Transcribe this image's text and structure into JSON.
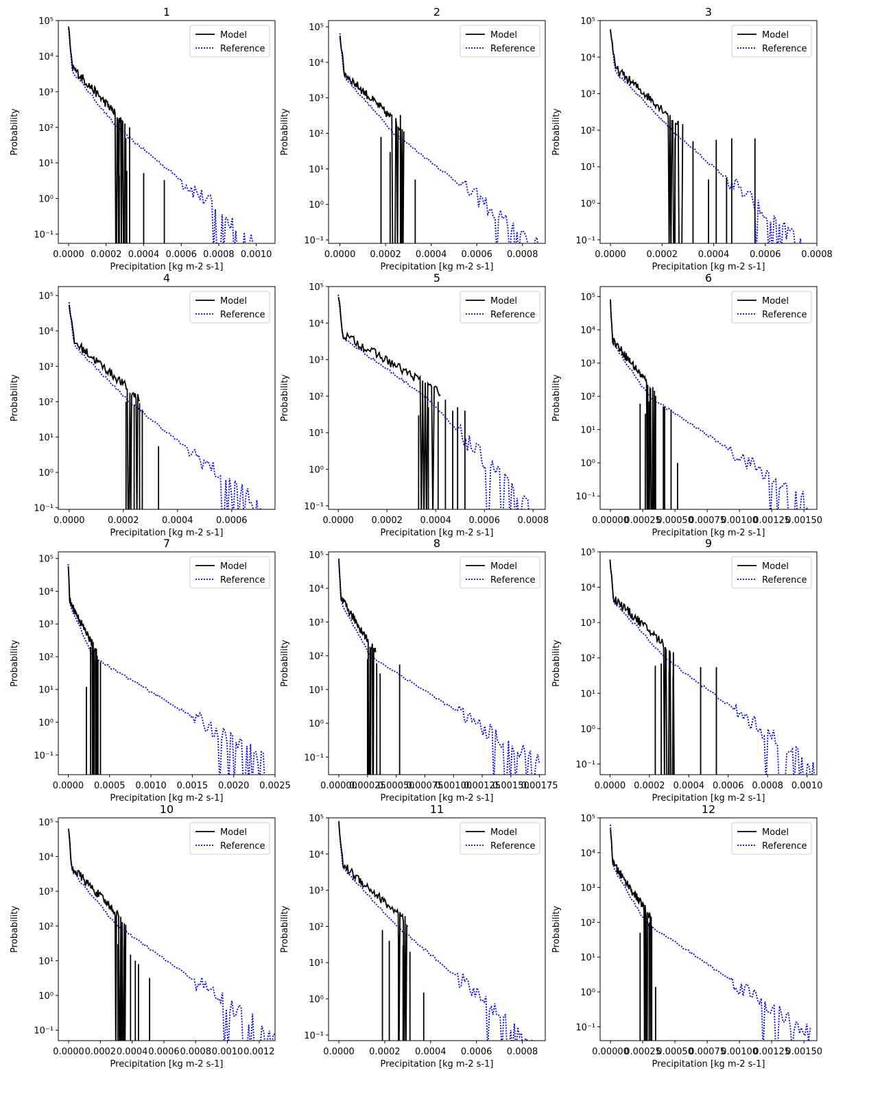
{
  "figure": {
    "legend_placement": "top-right",
    "styles": {
      "model_color": "#000000",
      "reference_color": "#0000ff"
    }
  },
  "chart_data": [
    {
      "type": "line",
      "title": "1",
      "xlabel": "Precipitation [kg m-2 s-1]",
      "ylabel": "Probability",
      "yscale": "log",
      "xlim": [
        -5.5e-05,
        0.0011
      ],
      "ylim": [
        0.055,
        100000
      ],
      "xticks": [
        0,
        0.0002,
        0.0004,
        0.0006,
        0.0008,
        0.001
      ],
      "xtick_labels": [
        "0.0000",
        "0.0002",
        "0.0004",
        "0.0006",
        "0.0008",
        "0.0010"
      ],
      "yticks": [
        0.1,
        1,
        10,
        100,
        1000,
        10000,
        100000
      ],
      "ytick_labels": [
        "10⁻¹",
        "10⁰",
        "10¹",
        "10²",
        "10³",
        "10⁴",
        "10⁵"
      ],
      "model_tail": 0.0003,
      "ref_end": 0.001,
      "spikes": [
        [
          0.00027,
          4.5
        ],
        [
          0.000305,
          50
        ],
        [
          0.00031,
          6
        ],
        [
          0.000325,
          100
        ],
        [
          0.0004,
          5.2
        ],
        [
          0.00051,
          3.3
        ]
      ],
      "legend": [
        "Model",
        "Reference"
      ]
    },
    {
      "type": "line",
      "title": "2",
      "xlabel": "Precipitation [kg m-2 s-1]",
      "ylabel": "Probability",
      "yscale": "log",
      "xlim": [
        -5e-05,
        0.0009
      ],
      "ylim": [
        0.08,
        150000
      ],
      "xticks": [
        0,
        0.0002,
        0.0004,
        0.0006,
        0.0008
      ],
      "xtick_labels": [
        "0.0000",
        "0.0002",
        "0.0004",
        "0.0006",
        "0.0008"
      ],
      "yticks": [
        0.1,
        1,
        10,
        100,
        1000,
        10000,
        100000
      ],
      "ytick_labels": [
        "10⁻¹",
        "10⁰",
        "10¹",
        "10²",
        "10³",
        "10⁴",
        "10⁵"
      ],
      "model_tail": 0.00028,
      "ref_end": 0.00088,
      "spikes": [
        [
          0.00018,
          80
        ],
        [
          0.00022,
          30
        ],
        [
          0.000265,
          330
        ],
        [
          0.000275,
          10
        ],
        [
          0.00033,
          5
        ]
      ],
      "legend": [
        "Model",
        "Reference"
      ]
    },
    {
      "type": "line",
      "title": "3",
      "xlabel": "Precipitation [kg m-2 s-1]",
      "ylabel": "Probability",
      "yscale": "log",
      "xlim": [
        -4e-05,
        0.0008
      ],
      "ylim": [
        0.08,
        100000
      ],
      "xticks": [
        0,
        0.0002,
        0.0004,
        0.0006,
        0.0008
      ],
      "xtick_labels": [
        "0.0000",
        "0.0002",
        "0.0004",
        "0.0006",
        "0.0008"
      ],
      "yticks": [
        0.1,
        1,
        10,
        100,
        1000,
        10000,
        100000
      ],
      "ytick_labels": [
        "10⁻¹",
        "10⁰",
        "10¹",
        "10²",
        "10³",
        "10⁴",
        "10⁵"
      ],
      "model_tail": 0.00028,
      "ref_end": 0.00075,
      "spikes": [
        [
          0.00025,
          60
        ],
        [
          0.00032,
          50
        ],
        [
          0.00038,
          4.5
        ],
        [
          0.00041,
          55
        ],
        [
          0.00045,
          5
        ],
        [
          0.00047,
          60
        ],
        [
          0.00056,
          60
        ]
      ],
      "legend": [
        "Model",
        "Reference"
      ]
    },
    {
      "type": "line",
      "title": "4",
      "xlabel": "Precipitation [kg m-2 s-1]",
      "ylabel": "Probability",
      "yscale": "log",
      "xlim": [
        -4e-05,
        0.00076
      ],
      "ylim": [
        0.09,
        180000
      ],
      "xticks": [
        0,
        0.0002,
        0.0004,
        0.0006
      ],
      "xtick_labels": [
        "0.0000",
        "0.0002",
        "0.0004",
        "0.0006"
      ],
      "yticks": [
        0.1,
        1,
        10,
        100,
        1000,
        10000,
        100000
      ],
      "ytick_labels": [
        "10⁻¹",
        "10⁰",
        "10¹",
        "10²",
        "10³",
        "10⁴",
        "10⁵"
      ],
      "model_tail": 0.00026,
      "ref_end": 0.00074,
      "spikes": [
        [
          0.00021,
          100
        ],
        [
          0.00024,
          80
        ],
        [
          0.00026,
          90
        ],
        [
          0.00027,
          60
        ],
        [
          0.00033,
          5.5
        ]
      ],
      "legend": [
        "Model",
        "Reference"
      ]
    },
    {
      "type": "line",
      "title": "5",
      "xlabel": "Precipitation [kg m-2 s-1]",
      "ylabel": "Probability",
      "yscale": "log",
      "xlim": [
        -4e-05,
        0.00085
      ],
      "ylim": [
        0.08,
        100000
      ],
      "xticks": [
        0,
        0.0002,
        0.0004,
        0.0006,
        0.0008
      ],
      "xtick_labels": [
        "0.0000",
        "0.0002",
        "0.0004",
        "0.0006",
        "0.0008"
      ],
      "yticks": [
        0.1,
        1,
        10,
        100,
        1000,
        10000,
        100000
      ],
      "ytick_labels": [
        "10⁻¹",
        "10⁰",
        "10¹",
        "10²",
        "10³",
        "10⁴",
        "10⁵"
      ],
      "model_tail": 0.00042,
      "ref_end": 0.0008,
      "spikes": [
        [
          0.00033,
          30
        ],
        [
          0.00037,
          50
        ],
        [
          0.00041,
          70
        ],
        [
          0.00044,
          80
        ],
        [
          0.00047,
          40
        ],
        [
          0.00049,
          50
        ],
        [
          0.00052,
          40
        ]
      ],
      "legend": [
        "Model",
        "Reference"
      ]
    },
    {
      "type": "line",
      "title": "6",
      "xlabel": "Precipitation [kg m-2 s-1]",
      "ylabel": "Probability",
      "yscale": "log",
      "xlim": [
        -8e-05,
        0.0016
      ],
      "ylim": [
        0.04,
        200000
      ],
      "xticks": [
        0,
        0.00025,
        0.0005,
        0.00075,
        0.001,
        0.00125,
        0.0015
      ],
      "xtick_labels": [
        "0.00000",
        "0.00025",
        "0.00050",
        "0.00075",
        "0.00100",
        "0.00125",
        "0.00150"
      ],
      "yticks": [
        0.1,
        1,
        10,
        100,
        1000,
        10000,
        100000
      ],
      "ytick_labels": [
        "10⁻¹",
        "10⁰",
        "10¹",
        "10²",
        "10³",
        "10⁴",
        "10⁵"
      ],
      "model_tail": 0.00035,
      "ref_end": 0.00155,
      "spikes": [
        [
          0.00023,
          60
        ],
        [
          0.00027,
          30
        ],
        [
          0.0003,
          70
        ],
        [
          0.00035,
          60
        ],
        [
          0.00041,
          50
        ],
        [
          0.00042,
          50
        ],
        [
          0.00047,
          40
        ],
        [
          0.00052,
          1
        ]
      ],
      "legend": [
        "Model",
        "Reference"
      ]
    },
    {
      "type": "line",
      "title": "7",
      "xlabel": "Precipitation [kg m-2 s-1]",
      "ylabel": "Probability",
      "yscale": "log",
      "xlim": [
        -0.00012,
        0.0025
      ],
      "ylim": [
        0.025,
        160000
      ],
      "xticks": [
        0,
        0.0005,
        0.001,
        0.0015,
        0.002,
        0.0025
      ],
      "xtick_labels": [
        "0.0000",
        "0.0005",
        "0.0010",
        "0.0015",
        "0.0020",
        "0.0025"
      ],
      "yticks": [
        0.1,
        1,
        10,
        100,
        1000,
        10000,
        100000
      ],
      "ytick_labels": [
        "10⁻¹",
        "10⁰",
        "10¹",
        "10²",
        "10³",
        "10⁴",
        "10⁵"
      ],
      "model_tail": 0.00035,
      "ref_end": 0.0024,
      "spikes": [
        [
          0.00022,
          12
        ],
        [
          0.00027,
          200
        ],
        [
          0.0003,
          150
        ],
        [
          0.00033,
          80
        ],
        [
          0.00036,
          80
        ],
        [
          0.00039,
          70
        ]
      ],
      "legend": [
        "Model",
        "Reference"
      ]
    },
    {
      "type": "line",
      "title": "8",
      "xlabel": "Precipitation [kg m-2 s-1]",
      "ylabel": "Probability",
      "yscale": "log",
      "xlim": [
        -9e-05,
        0.0018
      ],
      "ylim": [
        0.03,
        120000
      ],
      "xticks": [
        0,
        0.00025,
        0.0005,
        0.00075,
        0.001,
        0.00125,
        0.0015,
        0.00175
      ],
      "xtick_labels": [
        "0.00000",
        "0.00025",
        "0.00050",
        "0.00075",
        "0.00100",
        "0.00125",
        "0.00150",
        "0.00175"
      ],
      "yticks": [
        0.1,
        1,
        10,
        100,
        1000,
        10000,
        100000
      ],
      "ytick_labels": [
        "10⁻¹",
        "10⁰",
        "10¹",
        "10²",
        "10³",
        "10⁴",
        "10⁵"
      ],
      "model_tail": 0.00032,
      "ref_end": 0.00175,
      "spikes": [
        [
          0.00025,
          80
        ],
        [
          0.0003,
          50
        ],
        [
          0.00033,
          60
        ],
        [
          0.00036,
          30
        ],
        [
          0.00053,
          55
        ]
      ],
      "legend": [
        "Model",
        "Reference"
      ]
    },
    {
      "type": "line",
      "title": "9",
      "xlabel": "Precipitation [kg m-2 s-1]",
      "ylabel": "Probability",
      "yscale": "log",
      "xlim": [
        -5e-05,
        0.00105
      ],
      "ylim": [
        0.05,
        100000
      ],
      "xticks": [
        0,
        0.0002,
        0.0004,
        0.0006,
        0.0008,
        0.001
      ],
      "xtick_labels": [
        "0.0000",
        "0.0002",
        "0.0004",
        "0.0006",
        "0.0008",
        "0.0010"
      ],
      "yticks": [
        0.1,
        1,
        10,
        100,
        1000,
        10000,
        100000
      ],
      "ytick_labels": [
        "10⁻¹",
        "10⁰",
        "10¹",
        "10²",
        "10³",
        "10⁴",
        "10⁵"
      ],
      "model_tail": 0.00033,
      "ref_end": 0.00105,
      "spikes": [
        [
          0.00023,
          60
        ],
        [
          0.00026,
          70
        ],
        [
          0.0003,
          40
        ],
        [
          0.00032,
          30
        ],
        [
          0.00046,
          55
        ],
        [
          0.00054,
          55
        ]
      ],
      "legend": [
        "Model",
        "Reference"
      ]
    },
    {
      "type": "line",
      "title": "10",
      "xlabel": "Precipitation [kg m-2 s-1]",
      "ylabel": "Probability",
      "yscale": "log",
      "xlim": [
        -6.5e-05,
        0.0013
      ],
      "ylim": [
        0.05,
        130000
      ],
      "xticks": [
        0,
        0.0002,
        0.0004,
        0.0006,
        0.0008,
        0.001,
        0.0012
      ],
      "xtick_labels": [
        "0.0000",
        "0.0002",
        "0.0004",
        "0.0006",
        "0.0008",
        "0.0010",
        "0.0012"
      ],
      "yticks": [
        0.1,
        1,
        10,
        100,
        1000,
        10000,
        100000
      ],
      "ytick_labels": [
        "10⁻¹",
        "10⁰",
        "10¹",
        "10²",
        "10³",
        "10⁴",
        "10⁵"
      ],
      "model_tail": 0.00036,
      "ref_end": 0.0013,
      "spikes": [
        [
          0.00031,
          30
        ],
        [
          0.00035,
          25
        ],
        [
          0.00039,
          15
        ],
        [
          0.00042,
          10
        ],
        [
          0.00044,
          8
        ],
        [
          0.00051,
          3.2
        ]
      ],
      "legend": [
        "Model",
        "Reference"
      ]
    },
    {
      "type": "line",
      "title": "11",
      "xlabel": "Precipitation [kg m-2 s-1]",
      "ylabel": "Probability",
      "yscale": "log",
      "xlim": [
        -4.5e-05,
        0.0009
      ],
      "ylim": [
        0.07,
        100000
      ],
      "xticks": [
        0,
        0.0002,
        0.0004,
        0.0006,
        0.0008
      ],
      "xtick_labels": [
        "0.0000",
        "0.0002",
        "0.0004",
        "0.0006",
        "0.0008"
      ],
      "yticks": [
        0.1,
        1,
        10,
        100,
        1000,
        10000,
        100000
      ],
      "ytick_labels": [
        "10⁻¹",
        "10⁰",
        "10¹",
        "10²",
        "10³",
        "10⁴",
        "10⁵"
      ],
      "model_tail": 0.0003,
      "ref_end": 0.00085,
      "spikes": [
        [
          0.00019,
          80
        ],
        [
          0.00022,
          40
        ],
        [
          0.00026,
          60
        ],
        [
          0.00028,
          30
        ],
        [
          0.00031,
          20
        ],
        [
          0.00037,
          1.5
        ]
      ],
      "legend": [
        "Model",
        "Reference"
      ]
    },
    {
      "type": "line",
      "title": "12",
      "xlabel": "Precipitation [kg m-2 s-1]",
      "ylabel": "Probability",
      "yscale": "log",
      "xlim": [
        -8e-05,
        0.0016
      ],
      "ylim": [
        0.04,
        100000
      ],
      "xticks": [
        0,
        0.00025,
        0.0005,
        0.00075,
        0.001,
        0.00125,
        0.0015
      ],
      "xtick_labels": [
        "0.00000",
        "0.00025",
        "0.00050",
        "0.00075",
        "0.00100",
        "0.00125",
        "0.00150"
      ],
      "yticks": [
        0.1,
        1,
        10,
        100,
        1000,
        10000,
        100000
      ],
      "ytick_labels": [
        "10⁻¹",
        "10⁰",
        "10¹",
        "10²",
        "10³",
        "10⁴",
        "10⁵"
      ],
      "model_tail": 0.00032,
      "ref_end": 0.00155,
      "spikes": [
        [
          0.00023,
          50
        ],
        [
          0.00027,
          90
        ],
        [
          0.0003,
          100
        ],
        [
          0.00032,
          80
        ],
        [
          0.00035,
          1.4
        ]
      ],
      "legend": [
        "Model",
        "Reference"
      ]
    }
  ]
}
